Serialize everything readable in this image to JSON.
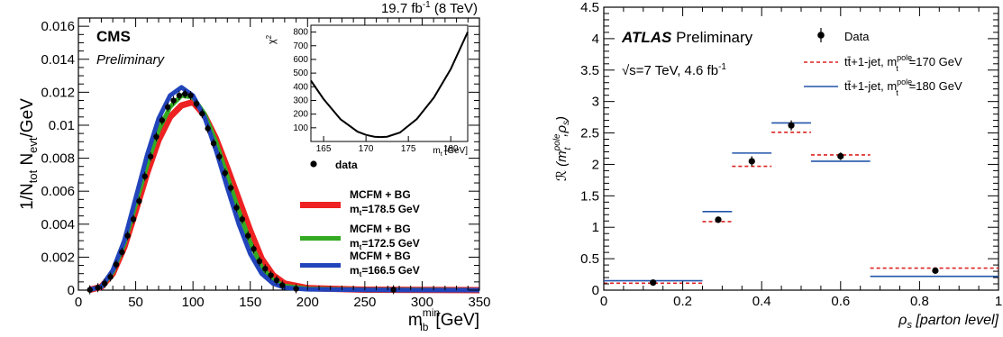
{
  "chart_data": [
    {
      "type": "line",
      "experiment": "CMS",
      "status": "Preliminary",
      "luminosity": "19.7 fb",
      "lumi_exp": "-1",
      "energy": "(8 TeV)",
      "xlabel": "m",
      "xlabel_sup": "min",
      "xlabel_sub": "lb",
      "xlabel_unit": "[GeV]",
      "ylabel": "1/N",
      "ylabel_sub1": "tot",
      "ylabel_mid": " N",
      "ylabel_sub2": "evt",
      "ylabel_unit": "/GeV",
      "xlim": [
        0,
        350
      ],
      "ylim": [
        0,
        0.0165
      ],
      "xticks": [
        "0",
        "50",
        "100",
        "150",
        "200",
        "250",
        "300",
        "350"
      ],
      "yticks": [
        "0",
        "0.002",
        "0.004",
        "0.006",
        "0.008",
        "0.01",
        "0.012",
        "0.014",
        "0.016"
      ],
      "legend": {
        "data": "data",
        "entries": [
          {
            "line1": "MCFM + BG",
            "line2": "m",
            "sub": "t",
            "value": "=178.5 GeV",
            "color": "#ee2222"
          },
          {
            "line1": "MCFM + BG",
            "line2": "m",
            "sub": "t",
            "value": "=172.5 GeV",
            "color": "#33aa22"
          },
          {
            "line1": "MCFM + BG",
            "line2": "m",
            "sub": "t",
            "value": "=166.5 GeV",
            "color": "#2244bb"
          }
        ]
      },
      "data_points": {
        "x": [
          10,
          17,
          23,
          28,
          33,
          38,
          43,
          48,
          53,
          58,
          63,
          68,
          73,
          78,
          83,
          88,
          93,
          98,
          103,
          108,
          113,
          118,
          123,
          128,
          133,
          138,
          143,
          148,
          153,
          158,
          163,
          168,
          173,
          178,
          190,
          275
        ],
        "y": [
          2e-05,
          0.00015,
          0.0004,
          0.0008,
          0.00155,
          0.0023,
          0.0033,
          0.0043,
          0.0054,
          0.0069,
          0.0081,
          0.0093,
          0.0103,
          0.0111,
          0.0115,
          0.0118,
          0.0119,
          0.0118,
          0.0113,
          0.0107,
          0.0098,
          0.0089,
          0.0081,
          0.0071,
          0.0062,
          0.005,
          0.0043,
          0.0033,
          0.0025,
          0.00175,
          0.0013,
          0.0009,
          0.0006,
          0.0003,
          8e-05,
          3e-05
        ]
      },
      "series": [
        {
          "name": "m_t=178.5 GeV",
          "color": "#ee2222",
          "x": [
            10,
            20,
            30,
            40,
            50,
            60,
            70,
            80,
            90,
            100,
            110,
            120,
            130,
            140,
            150,
            160,
            170,
            180,
            200,
            250,
            300,
            350
          ],
          "y": [
            2e-05,
            0.0002,
            0.001,
            0.0026,
            0.0048,
            0.0071,
            0.0091,
            0.0105,
            0.0112,
            0.0114,
            0.0106,
            0.0092,
            0.0074,
            0.0055,
            0.0036,
            0.0019,
            0.0009,
            0.0004,
            0.00012,
            3e-05,
            1e-05,
            0
          ]
        },
        {
          "name": "m_t=172.5 GeV",
          "color": "#33aa22",
          "x": [
            10,
            20,
            30,
            40,
            50,
            60,
            70,
            80,
            90,
            100,
            110,
            120,
            130,
            140,
            150,
            160,
            170,
            180,
            200,
            250,
            300,
            350
          ],
          "y": [
            2e-05,
            0.0002,
            0.0011,
            0.0028,
            0.0052,
            0.0076,
            0.0097,
            0.0111,
            0.0118,
            0.0117,
            0.0107,
            0.009,
            0.0069,
            0.0048,
            0.0029,
            0.0014,
            0.0006,
            0.00025,
            8e-05,
            2e-05,
            1e-05,
            0
          ]
        },
        {
          "name": "m_t=166.5 GeV",
          "color": "#2244bb",
          "x": [
            10,
            20,
            30,
            40,
            50,
            60,
            70,
            80,
            90,
            100,
            110,
            120,
            130,
            140,
            150,
            160,
            170,
            180,
            200,
            250,
            300,
            350
          ],
          "y": [
            2e-05,
            0.0002,
            0.0012,
            0.003,
            0.0056,
            0.0082,
            0.0104,
            0.0118,
            0.0123,
            0.0118,
            0.0105,
            0.0085,
            0.0062,
            0.004,
            0.0022,
            0.001,
            0.0004,
            0.00015,
            5e-05,
            1e-05,
            0,
            0
          ]
        }
      ],
      "inset": {
        "ylabel": "χ",
        "ylabel_sup": "2",
        "xlabel": "m",
        "xlabel_sub": "t",
        "xlabel_unit": " [GeV]",
        "xlim": [
          163.5,
          182
        ],
        "ylim": [
          0,
          850
        ],
        "xticks": [
          "165",
          "170",
          "175",
          "180"
        ],
        "yticks": [
          "100",
          "200",
          "300",
          "400",
          "500",
          "600",
          "700",
          "800"
        ],
        "curve": {
          "x": [
            163.5,
            165,
            167,
            169,
            170,
            171,
            171.7,
            172.5,
            174,
            176,
            178,
            180,
            182
          ],
          "y": [
            445,
            310,
            162,
            72,
            48,
            35,
            32,
            35,
            65,
            165,
            320,
            530,
            800
          ]
        }
      }
    },
    {
      "type": "bar",
      "experiment": "ATLAS",
      "status": "Preliminary",
      "energy_lumi": "√s=7 TeV, 4.6 fb",
      "lumi_exp": "-1",
      "xlabel": "ρ",
      "xlabel_sub": "s",
      "xlabel_unit": " [parton level]",
      "ylabel": "ℛ (m",
      "ylabel_sup": "pole",
      "ylabel_sub": "t",
      "ylabel_tail": ",ρ",
      "ylabel_sub2": "s",
      "ylabel_close": ")",
      "xlim": [
        0,
        1
      ],
      "ylim": [
        0,
        4.5
      ],
      "xticks": [
        "0",
        "0.2",
        "0.4",
        "0.6",
        "0.8",
        "1"
      ],
      "yticks": [
        "0",
        "0.5",
        "1",
        "1.5",
        "2",
        "2.5",
        "3",
        "3.5",
        "4",
        "4.5"
      ],
      "bins": [
        [
          0,
          0.25
        ],
        [
          0.25,
          0.325
        ],
        [
          0.325,
          0.425
        ],
        [
          0.425,
          0.525
        ],
        [
          0.525,
          0.675
        ],
        [
          0.675,
          1.0
        ]
      ],
      "legend": {
        "data": "Data",
        "entry1": {
          "prefix": "tt̄+1-jet, m",
          "sup": "pole",
          "sub": "t",
          "value": "=170 GeV"
        },
        "entry2": {
          "prefix": "tt̄+1-jet, m",
          "sup": "pole",
          "sub": "t",
          "value": "=180 GeV"
        }
      },
      "data_points": {
        "x": [
          0.125,
          0.29,
          0.375,
          0.475,
          0.6,
          0.84
        ],
        "y": [
          0.12,
          1.12,
          2.05,
          2.62,
          2.13,
          0.31
        ],
        "err": [
          0.03,
          0.05,
          0.08,
          0.08,
          0.06,
          0.03
        ]
      },
      "series": [
        {
          "name": "m_t^pole=170 GeV",
          "color": "#dd2222",
          "values": [
            0.11,
            1.09,
            1.97,
            2.51,
            2.15,
            0.35
          ]
        },
        {
          "name": "m_t^pole=180 GeV",
          "color": "#2255aa",
          "values": [
            0.15,
            1.25,
            2.18,
            2.66,
            2.05,
            0.22
          ]
        }
      ]
    }
  ]
}
